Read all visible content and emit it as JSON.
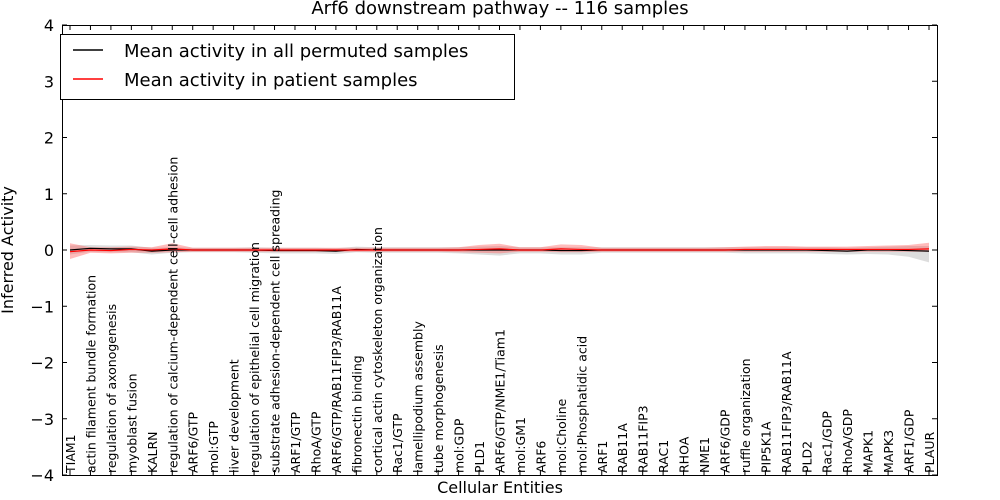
{
  "chart_data": {
    "type": "line",
    "title": "Arf6 downstream pathway -- 116 samples",
    "xlabel": "Cellular Entities",
    "ylabel": "Inferred Activity",
    "ylim": [
      -4,
      4
    ],
    "yticks": [
      -4,
      -3,
      -2,
      -1,
      0,
      1,
      2,
      3,
      4
    ],
    "ytick_labels": [
      "−4",
      "−3",
      "−2",
      "−1",
      "0",
      "1",
      "2",
      "3",
      "4"
    ],
    "grid": false,
    "legend_position": "top-left",
    "categories": [
      "TIAM1",
      "actin filament bundle formation",
      "regulation of axonogenesis",
      "myoblast fusion",
      "KALRN",
      "regulation of calcium-dependent cell-cell adhesion",
      "ARF6/GTP",
      "mol:GTP",
      "liver development",
      "regulation of epithelial cell migration",
      "substrate adhesion-dependent cell spreading",
      "ARF1/GTP",
      "RhoA/GTP",
      "ARF6/GTP/RAB11FIP3/RAB11A",
      "fibronectin binding",
      "cortical actin cytoskeleton organization",
      "Rac1/GTP",
      "lamellipodium assembly",
      "tube morphogenesis",
      "mol:GDP",
      "PLD1",
      "ARF6/GTP/NME1/Tiam1",
      "mol:GM1",
      "ARF6",
      "mol:Choline",
      "mol:Phosphatidic acid",
      "ARF1",
      "RAB11A",
      "RAB11FIP3",
      "RAC1",
      "RHOA",
      "NME1",
      "ARF6/GDP",
      "ruffle organization",
      "PIP5K1A",
      "RAB11FIP3/RAB11A",
      "PLD2",
      "Rac1/GDP",
      "RhoA/GDP",
      "MAPK1",
      "MAPK3",
      "ARF1/GDP",
      "PLAUR"
    ],
    "series": [
      {
        "name": "Mean activity in all permuted samples",
        "color": "#000000",
        "values": [
          0.0,
          0.03,
          0.02,
          0.02,
          -0.02,
          0.0,
          0.0,
          0.0,
          0.0,
          0.0,
          -0.01,
          -0.01,
          -0.01,
          -0.02,
          0.01,
          0.0,
          0.0,
          0.0,
          0.0,
          0.0,
          0.0,
          0.0,
          0.0,
          0.0,
          -0.01,
          -0.01,
          0.0,
          0.0,
          0.0,
          0.0,
          0.0,
          0.0,
          0.0,
          0.0,
          0.0,
          0.0,
          0.0,
          -0.01,
          -0.02,
          0.0,
          0.0,
          -0.01,
          -0.02
        ],
        "band_lower": [
          -0.08,
          -0.03,
          -0.04,
          -0.04,
          -0.08,
          -0.05,
          -0.04,
          -0.04,
          -0.04,
          -0.05,
          -0.06,
          -0.06,
          -0.06,
          -0.07,
          -0.04,
          -0.05,
          -0.05,
          -0.05,
          -0.05,
          -0.06,
          -0.08,
          -0.1,
          -0.06,
          -0.06,
          -0.08,
          -0.08,
          -0.05,
          -0.05,
          -0.05,
          -0.05,
          -0.05,
          -0.05,
          -0.05,
          -0.06,
          -0.06,
          -0.06,
          -0.06,
          -0.07,
          -0.08,
          -0.07,
          -0.08,
          -0.12,
          -0.22
        ],
        "band_upper": [
          0.08,
          0.09,
          0.08,
          0.08,
          0.04,
          0.05,
          0.04,
          0.04,
          0.04,
          0.05,
          0.04,
          0.04,
          0.04,
          0.03,
          0.06,
          0.05,
          0.05,
          0.05,
          0.05,
          0.05,
          0.06,
          0.07,
          0.05,
          0.05,
          0.05,
          0.05,
          0.05,
          0.05,
          0.05,
          0.05,
          0.05,
          0.05,
          0.05,
          0.05,
          0.05,
          0.05,
          0.05,
          0.05,
          0.04,
          0.05,
          0.06,
          0.07,
          0.07
        ]
      },
      {
        "name": "Mean activity in patient samples",
        "color": "#ff0000",
        "values": [
          -0.03,
          0.0,
          -0.01,
          0.01,
          0.0,
          0.02,
          0.0,
          0.0,
          0.0,
          0.0,
          0.0,
          0.0,
          0.0,
          0.0,
          0.0,
          0.0,
          0.0,
          0.0,
          0.0,
          0.0,
          0.01,
          0.02,
          0.0,
          0.0,
          0.02,
          0.01,
          0.0,
          0.0,
          0.0,
          0.0,
          0.0,
          0.0,
          0.0,
          0.01,
          0.01,
          0.01,
          0.01,
          0.01,
          0.01,
          0.01,
          0.01,
          0.01,
          0.02
        ],
        "band_lower": [
          -0.16,
          -0.05,
          -0.06,
          -0.05,
          -0.05,
          -0.04,
          -0.03,
          -0.03,
          -0.03,
          -0.03,
          -0.03,
          -0.03,
          -0.03,
          -0.03,
          -0.03,
          -0.03,
          -0.03,
          -0.03,
          -0.03,
          -0.04,
          -0.05,
          -0.06,
          -0.03,
          -0.03,
          -0.04,
          -0.04,
          -0.03,
          -0.03,
          -0.03,
          -0.03,
          -0.03,
          -0.03,
          -0.03,
          -0.03,
          -0.03,
          -0.03,
          -0.03,
          -0.03,
          -0.03,
          -0.03,
          -0.03,
          -0.03,
          -0.03
        ],
        "band_upper": [
          0.12,
          0.05,
          0.05,
          0.06,
          0.05,
          0.12,
          0.04,
          0.04,
          0.04,
          0.04,
          0.04,
          0.04,
          0.04,
          0.04,
          0.04,
          0.04,
          0.04,
          0.04,
          0.04,
          0.05,
          0.09,
          0.11,
          0.05,
          0.05,
          0.1,
          0.09,
          0.04,
          0.04,
          0.04,
          0.04,
          0.04,
          0.04,
          0.05,
          0.06,
          0.07,
          0.07,
          0.06,
          0.06,
          0.06,
          0.07,
          0.08,
          0.09,
          0.13
        ]
      }
    ]
  }
}
